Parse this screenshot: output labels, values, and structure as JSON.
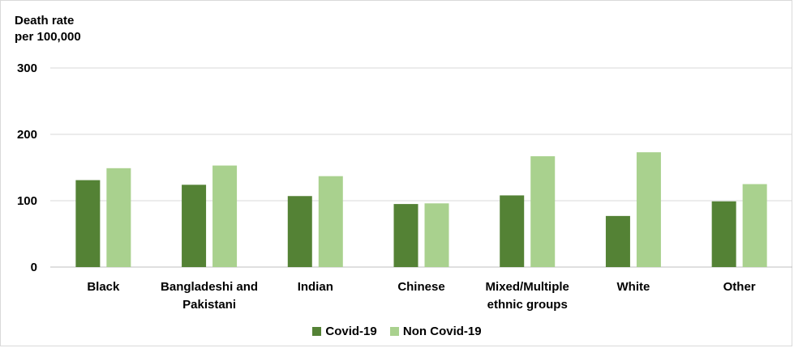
{
  "chart_data": {
    "type": "bar",
    "ylabel_lines": [
      "Death rate",
      "per 100,000"
    ],
    "categories": [
      [
        "Black"
      ],
      [
        "Bangladeshi and",
        "Pakistani"
      ],
      [
        "Indian"
      ],
      [
        "Chinese"
      ],
      [
        "Mixed/Multiple",
        "ethnic groups"
      ],
      [
        "White"
      ],
      [
        "Other"
      ]
    ],
    "series": [
      {
        "name": "Covid-19",
        "color": "#548235",
        "values": [
          131,
          124,
          107,
          95,
          108,
          77,
          99
        ]
      },
      {
        "name": "Non Covid-19",
        "color": "#a9d18e",
        "values": [
          149,
          153,
          137,
          96,
          167,
          173,
          125
        ]
      }
    ],
    "ylim": [
      0,
      300
    ],
    "yticks": [
      0,
      100,
      200,
      300
    ],
    "grid": true,
    "legend_position": "bottom"
  }
}
